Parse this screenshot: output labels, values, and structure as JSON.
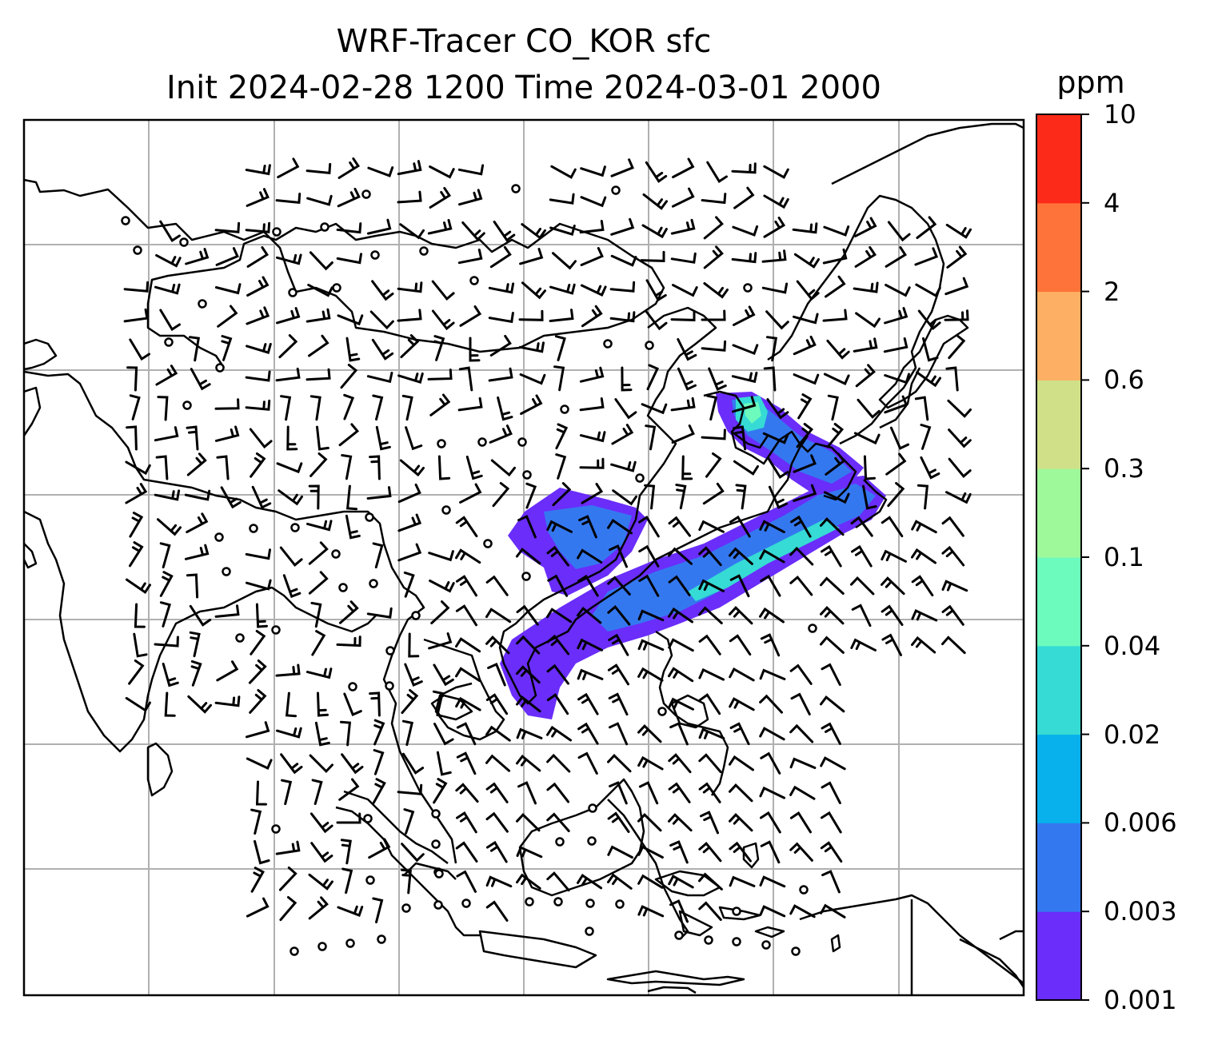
{
  "title": {
    "line1": "WRF-Tracer CO_KOR sfc",
    "line2": "Init 2024-02-28 1200 Time 2024-03-01 2000"
  },
  "colorbar": {
    "unit": "ppm",
    "ticks": [
      "0.001",
      "0.003",
      "0.006",
      "0.02",
      "0.04",
      "0.1",
      "0.3",
      "0.6",
      "2",
      "4",
      "10"
    ],
    "colors": [
      "#6a2dfa",
      "#3478f0",
      "#08b0ec",
      "#35dbd4",
      "#6dfbbd",
      "#9ef99a",
      "#cfe089",
      "#fdaf63",
      "#fe7339",
      "#fc2a19"
    ]
  },
  "map": {
    "map_type": "contour-over-coastlines",
    "gridlines": true,
    "field": "CO_KOR surface concentration",
    "overlay": "wind barbs",
    "plume_colors": [
      "#6a2dfa",
      "#3478f0",
      "#35dbd4",
      "#6dfbbd",
      "#9ef99a"
    ]
  }
}
